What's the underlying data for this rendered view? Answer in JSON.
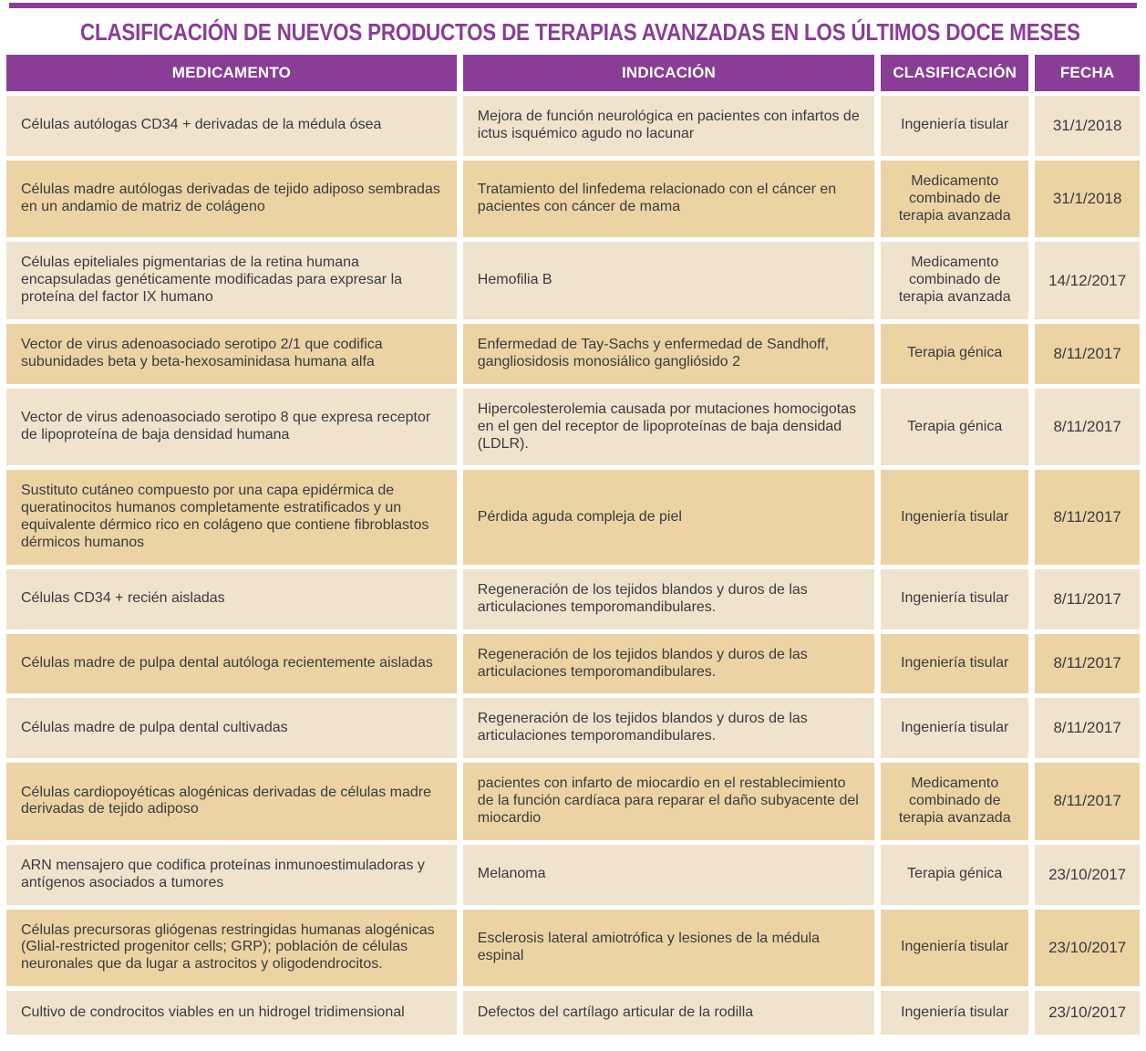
{
  "title": "CLASIFICACIÓN DE NUEVOS PRODUCTOS DE TERAPIAS AVANZADAS EN LOS ÚLTIMOS DOCE MESES",
  "colors": {
    "accent_purple": "#8a3d96",
    "header_text": "#ffffff",
    "cell_text": "#3b3b3c",
    "row_light": "#efe3ce",
    "row_tan": "#ebd3a4"
  },
  "table": {
    "columns": [
      {
        "key": "medicamento",
        "label": "MEDICAMENTO"
      },
      {
        "key": "indicacion",
        "label": "INDICACIÓN"
      },
      {
        "key": "clasificacion",
        "label": "CLASIFICACIÓN"
      },
      {
        "key": "fecha",
        "label": "FECHA"
      }
    ],
    "rows": [
      {
        "medicamento": "Células autólogas CD34 + derivadas de la médula ósea",
        "indicacion": "Mejora de función neurológica en pacientes con infartos de ictus isquémico agudo no lacunar",
        "clasificacion": "Ingeniería tisular",
        "fecha": "31/1/2018"
      },
      {
        "medicamento": "Células madre autólogas derivadas de tejido adiposo sembradas en un andamio de matriz de colágeno",
        "indicacion": "Tratamiento del linfedema relacionado con el cáncer en pacientes con cáncer de mama",
        "clasificacion": "Medicamento combinado de terapia avanzada",
        "fecha": "31/1/2018"
      },
      {
        "medicamento": "Células epiteliales pigmentarias de la retina humana encapsuladas genéticamente modificadas para expresar la proteína del factor IX humano",
        "indicacion": "Hemofilia B",
        "clasificacion": "Medicamento combinado de terapia avanzada",
        "fecha": "14/12/2017"
      },
      {
        "medicamento": "Vector de virus adenoasociado serotipo 2/1 que codifica subunidades beta y beta-hexosaminidasa humana alfa",
        "indicacion": "Enfermedad de Tay-Sachs y enfermedad de Sandhoff, gangliosidosis monosiálico gangliósido 2",
        "clasificacion": "Terapia génica",
        "fecha": "8/11/2017"
      },
      {
        "medicamento": "Vector de virus adenoasociado serotipo 8 que expresa receptor de lipoproteína de baja densidad humana",
        "indicacion": "Hipercolesterolemia causada por mutaciones homocigotas en el gen del receptor de lipoproteínas de baja densidad (LDLR).",
        "clasificacion": "Terapia génica",
        "fecha": "8/11/2017"
      },
      {
        "medicamento": "Sustituto cutáneo compuesto por una capa epidérmica de queratinocitos humanos completamente estratificados y un equivalente dérmico rico en colágeno que contiene fibroblastos dérmicos humanos",
        "indicacion": "Pérdida aguda compleja de piel",
        "clasificacion": "Ingeniería tisular",
        "fecha": "8/11/2017"
      },
      {
        "medicamento": "Células CD34 + recién aisladas",
        "indicacion": "Regeneración de los tejidos blandos y duros de las articulaciones temporomandibulares.",
        "clasificacion": "Ingeniería tisular",
        "fecha": "8/11/2017"
      },
      {
        "medicamento": "Células madre de pulpa dental autóloga recientemente aisladas",
        "indicacion": "Regeneración de los tejidos blandos y duros de las articulaciones temporomandibulares.",
        "clasificacion": "Ingeniería tisular",
        "fecha": "8/11/2017"
      },
      {
        "medicamento": "Células madre de pulpa dental cultivadas",
        "indicacion": "Regeneración de los tejidos blandos y duros de las articulaciones temporomandibulares.",
        "clasificacion": "Ingeniería tisular",
        "fecha": "8/11/2017"
      },
      {
        "medicamento": "Células cardiopoyéticas alogénicas derivadas de células madre derivadas de tejido adiposo",
        "indicacion": "pacientes con infarto de miocardio en el restablecimiento de la función cardíaca para reparar el daño subyacente del miocardio",
        "clasificacion": "Medicamento combinado de terapia avanzada",
        "fecha": "8/11/2017"
      },
      {
        "medicamento": "ARN mensajero que codifica proteínas inmunoestimuladoras y antígenos asociados a tumores",
        "indicacion": "Melanoma",
        "clasificacion": "Terapia génica",
        "fecha": "23/10/2017"
      },
      {
        "medicamento": "Células precursoras gliógenas restringidas humanas alogénicas (Glial-restricted progenitor cells; GRP); población de células neuronales que da lugar a astrocitos y oligodendrocitos.",
        "indicacion": "Esclerosis lateral amiotrófica y lesiones de la médula espinal",
        "clasificacion": "Ingeniería tisular",
        "fecha": "23/10/2017"
      },
      {
        "medicamento": "Cultivo de condrocitos viables en un hidrogel tridimensional",
        "indicacion": "Defectos del cartílago articular de la rodilla",
        "clasificacion": "Ingeniería tisular",
        "fecha": "23/10/2017"
      }
    ]
  }
}
